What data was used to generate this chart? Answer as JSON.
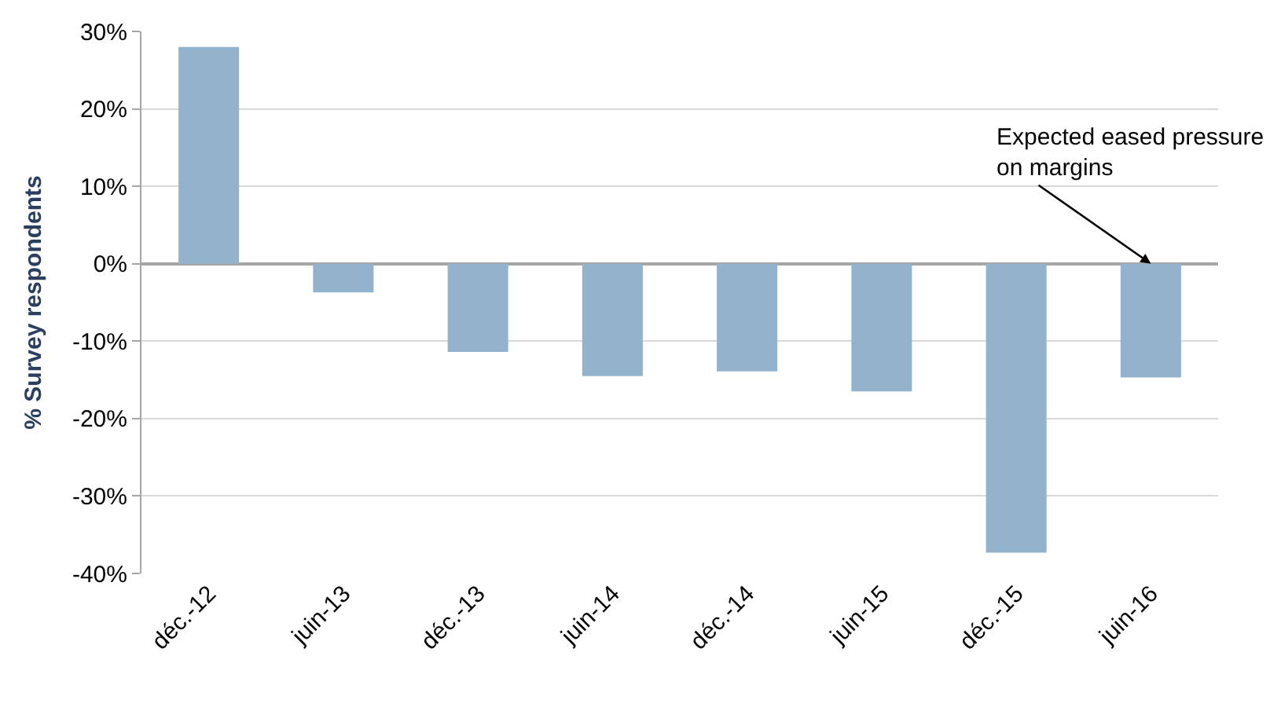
{
  "chart_data": {
    "type": "bar",
    "ylabel": "% Survey respondents",
    "categories": [
      "déc.-12",
      "juin-13",
      "déc.-13",
      "juin-14",
      "déc.-14",
      "juin-15",
      "déc.-15",
      "juin-16"
    ],
    "values": [
      28,
      -3.7,
      -11.4,
      -14.5,
      -13.9,
      -16.5,
      -37.3,
      -14.7
    ],
    "color": "#93b3cc",
    "ylim": [
      -40,
      30
    ],
    "yticks": [
      {
        "value": -40,
        "label": "-40%"
      },
      {
        "value": -30,
        "label": "-30%"
      },
      {
        "value": -20,
        "label": "-20%"
      },
      {
        "value": -10,
        "label": "-10%"
      },
      {
        "value": 0,
        "label": "0%"
      },
      {
        "value": 10,
        "label": "10%"
      },
      {
        "value": 20,
        "label": "20%"
      },
      {
        "value": 30,
        "label": "30%"
      }
    ],
    "grid": "y",
    "annotations": [
      {
        "text": "Expected eased pressure\non margins",
        "x": "juin-16",
        "y": 0
      }
    ]
  }
}
